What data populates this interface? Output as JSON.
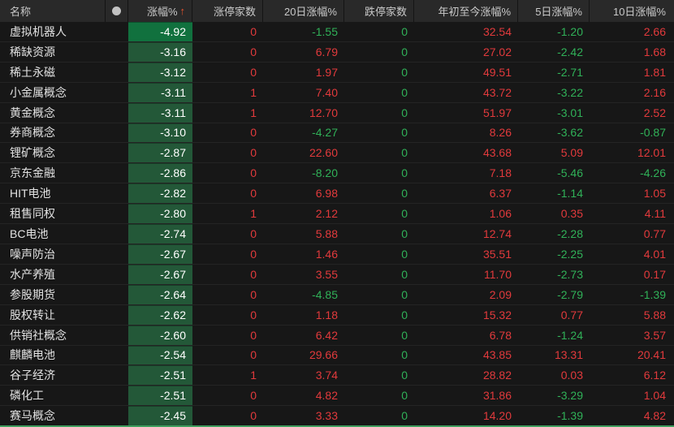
{
  "colors": {
    "red": "#e23a3c",
    "green": "#30b158",
    "heat_cell": "#235838",
    "heat_cell_bright": "#11713e",
    "heat_text": "#ffffff",
    "accent_line": "#3f9e5e",
    "marker_dot": "#c2c2c2",
    "sort_arrow": "#e8512e"
  },
  "icons": {
    "marker": "filled-circle",
    "sort": "up-arrow"
  },
  "header": {
    "name_label": "名称",
    "change_label": "涨幅%",
    "sort_indicator": "↑",
    "limit_up_label": "涨停家数",
    "d20_label": "20日涨幅%",
    "limit_down_label": "跌停家数",
    "ytd_label": "年初至今涨幅%",
    "d5_label": "5日涨幅%",
    "d10_label": "10日涨幅%"
  },
  "rows": [
    {
      "name": "虚拟机器人",
      "change": "-4.92",
      "limit_up": "0",
      "d20": "-1.55",
      "limit_down": "0",
      "ytd": "32.54",
      "d5": "-1.20",
      "d10": "2.66"
    },
    {
      "name": "稀缺资源",
      "change": "-3.16",
      "limit_up": "0",
      "d20": "6.79",
      "limit_down": "0",
      "ytd": "27.02",
      "d5": "-2.42",
      "d10": "1.68"
    },
    {
      "name": "稀土永磁",
      "change": "-3.12",
      "limit_up": "0",
      "d20": "1.97",
      "limit_down": "0",
      "ytd": "49.51",
      "d5": "-2.71",
      "d10": "1.81"
    },
    {
      "name": "小金属概念",
      "change": "-3.11",
      "limit_up": "1",
      "d20": "7.40",
      "limit_down": "0",
      "ytd": "43.72",
      "d5": "-3.22",
      "d10": "2.16"
    },
    {
      "name": "黄金概念",
      "change": "-3.11",
      "limit_up": "1",
      "d20": "12.70",
      "limit_down": "0",
      "ytd": "51.97",
      "d5": "-3.01",
      "d10": "2.52"
    },
    {
      "name": "券商概念",
      "change": "-3.10",
      "limit_up": "0",
      "d20": "-4.27",
      "limit_down": "0",
      "ytd": "8.26",
      "d5": "-3.62",
      "d10": "-0.87"
    },
    {
      "name": "锂矿概念",
      "change": "-2.87",
      "limit_up": "0",
      "d20": "22.60",
      "limit_down": "0",
      "ytd": "43.68",
      "d5": "5.09",
      "d10": "12.01"
    },
    {
      "name": "京东金融",
      "change": "-2.86",
      "limit_up": "0",
      "d20": "-8.20",
      "limit_down": "0",
      "ytd": "7.18",
      "d5": "-5.46",
      "d10": "-4.26"
    },
    {
      "name": "HIT电池",
      "change": "-2.82",
      "limit_up": "0",
      "d20": "6.98",
      "limit_down": "0",
      "ytd": "6.37",
      "d5": "-1.14",
      "d10": "1.05"
    },
    {
      "name": "租售同权",
      "change": "-2.80",
      "limit_up": "1",
      "d20": "2.12",
      "limit_down": "0",
      "ytd": "1.06",
      "d5": "0.35",
      "d10": "4.11"
    },
    {
      "name": "BC电池",
      "change": "-2.74",
      "limit_up": "0",
      "d20": "5.88",
      "limit_down": "0",
      "ytd": "12.74",
      "d5": "-2.28",
      "d10": "0.77"
    },
    {
      "name": "噪声防治",
      "change": "-2.67",
      "limit_up": "0",
      "d20": "1.46",
      "limit_down": "0",
      "ytd": "35.51",
      "d5": "-2.25",
      "d10": "4.01"
    },
    {
      "name": "水产养殖",
      "change": "-2.67",
      "limit_up": "0",
      "d20": "3.55",
      "limit_down": "0",
      "ytd": "11.70",
      "d5": "-2.73",
      "d10": "0.17"
    },
    {
      "name": "参股期货",
      "change": "-2.64",
      "limit_up": "0",
      "d20": "-4.85",
      "limit_down": "0",
      "ytd": "2.09",
      "d5": "-2.79",
      "d10": "-1.39"
    },
    {
      "name": "股权转让",
      "change": "-2.62",
      "limit_up": "0",
      "d20": "1.18",
      "limit_down": "0",
      "ytd": "15.32",
      "d5": "0.77",
      "d10": "5.88"
    },
    {
      "name": "供销社概念",
      "change": "-2.60",
      "limit_up": "0",
      "d20": "6.42",
      "limit_down": "0",
      "ytd": "6.78",
      "d5": "-1.24",
      "d10": "3.57"
    },
    {
      "name": "麒麟电池",
      "change": "-2.54",
      "limit_up": "0",
      "d20": "29.66",
      "limit_down": "0",
      "ytd": "43.85",
      "d5": "13.31",
      "d10": "20.41"
    },
    {
      "name": "谷子经济",
      "change": "-2.51",
      "limit_up": "1",
      "d20": "3.74",
      "limit_down": "0",
      "ytd": "28.82",
      "d5": "0.03",
      "d10": "6.12"
    },
    {
      "name": "磷化工",
      "change": "-2.51",
      "limit_up": "0",
      "d20": "4.82",
      "limit_down": "0",
      "ytd": "31.86",
      "d5": "-3.29",
      "d10": "1.04"
    },
    {
      "name": "赛马概念",
      "change": "-2.45",
      "limit_up": "0",
      "d20": "3.33",
      "limit_down": "0",
      "ytd": "14.20",
      "d5": "-1.39",
      "d10": "4.82"
    }
  ]
}
